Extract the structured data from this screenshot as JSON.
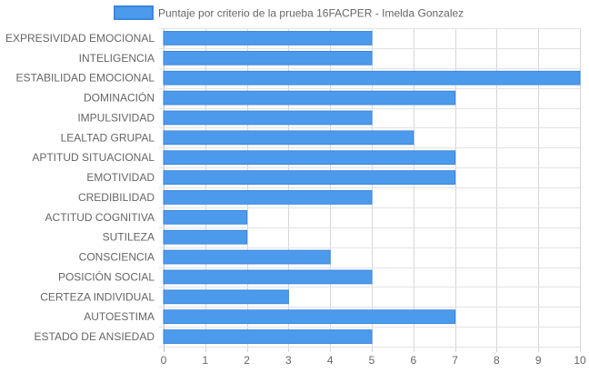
{
  "chart_data": {
    "type": "bar",
    "orientation": "horizontal",
    "categories": [
      "EXPRESIVIDAD EMOCIONAL",
      "INTELIGENCIA",
      "ESTABILIDAD EMOCIONAL",
      "DOMINACIÓN",
      "IMPULSIVIDAD",
      "LEALTAD GRUPAL",
      "APTITUD SITUACIONAL",
      "EMOTIVIDAD",
      "CREDIBILIDAD",
      "ACTITUD COGNITIVA",
      "SUTILEZA",
      "CONSCIENCIA",
      "POSICIÓN SOCIAL",
      "CERTEZA INDIVIDUAL",
      "AUTOESTIMA",
      "ESTADO DE ANSIEDAD"
    ],
    "series": [
      {
        "name": "Puntaje por criterio de la prueba 16FACPER - Imelda Gonzalez",
        "values": [
          5,
          5,
          10,
          7,
          5,
          6,
          7,
          7,
          5,
          2,
          2,
          4,
          5,
          3,
          7,
          5
        ],
        "color": "#4c9aec",
        "border_color": "#3d86dd"
      }
    ],
    "xlim": [
      0,
      10
    ],
    "xticks": [
      "0",
      "1",
      "2",
      "3",
      "4",
      "5",
      "6",
      "7",
      "8",
      "9",
      "10"
    ],
    "grid": true,
    "legend_position": "top-center",
    "title": "",
    "xlabel": "",
    "ylabel": ""
  }
}
